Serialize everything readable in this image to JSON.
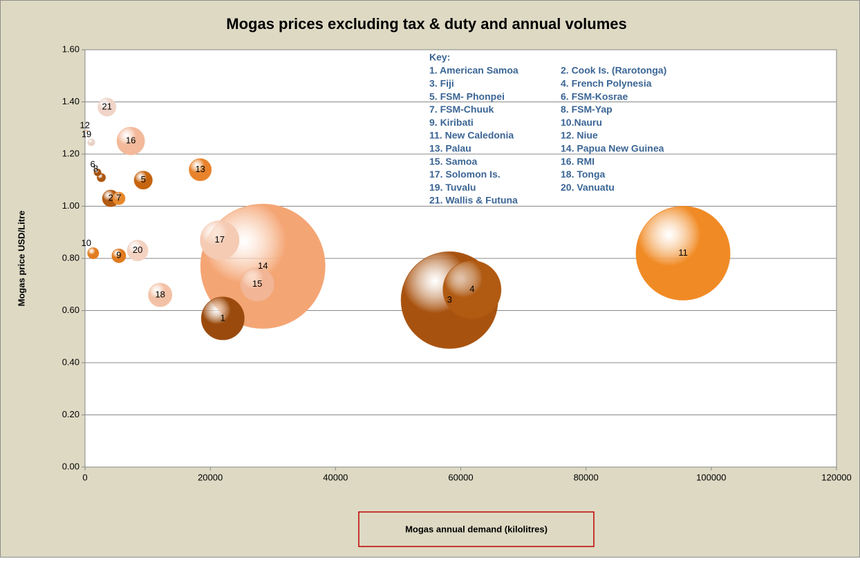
{
  "chart_data": {
    "type": "bubble",
    "title": "Mogas prices excluding tax & duty and annual volumes",
    "x_label": "Mogas annual demand (kilolitres)",
    "y_label": "Mogas price USD/Litre",
    "xlim": [
      0,
      120000
    ],
    "xticks": [
      0,
      20000,
      40000,
      60000,
      80000,
      100000,
      120000
    ],
    "ylim": [
      0,
      1.6
    ],
    "yticks": [
      {
        "value": 0,
        "label": "0.00"
      },
      {
        "value": 0.2,
        "label": "0.20"
      },
      {
        "value": 0.4,
        "label": "0.40"
      },
      {
        "value": 0.6,
        "label": "0.60"
      },
      {
        "value": 0.8,
        "label": "0.80"
      },
      {
        "value": 1.0,
        "label": "1.00"
      },
      {
        "value": 1.2,
        "label": "1.20"
      },
      {
        "value": 1.4,
        "label": "1.40"
      },
      {
        "value": 1.6,
        "label": "1.60"
      }
    ],
    "grid": true,
    "series": [
      {
        "labels": [
          "1",
          "2",
          "3",
          "4",
          "5",
          "6",
          "7",
          "8",
          "9",
          "10",
          "11",
          "12",
          "13",
          "14",
          "15",
          "16",
          "17",
          "18",
          "19",
          "20",
          "21"
        ],
        "x": [
          22000,
          4100,
          58200,
          61800,
          9300,
          2000,
          5400,
          2600,
          5400,
          1300,
          95500,
          300,
          18400,
          28400,
          27500,
          7300,
          21500,
          12000,
          1000,
          8400,
          3500
        ],
        "values": [
          0.57,
          1.03,
          0.64,
          0.68,
          1.1,
          1.13,
          1.03,
          1.11,
          0.81,
          0.82,
          0.82,
          1.29,
          1.14,
          0.77,
          0.7,
          1.25,
          0.87,
          0.66,
          1.245,
          0.83,
          1.38
        ],
        "sizes": [
          960,
          144,
          4900,
          1760,
          170,
          25,
          81,
          36,
          100,
          64,
          4620,
          1,
          256,
          8100,
          576,
          400,
          784,
          290,
          25,
          225,
          170
        ],
        "colors": [
          "#9a4a0c",
          "#b35a12",
          "#a8520f",
          "#b05a12",
          "#c6640f",
          "#a2500e",
          "#e6872a",
          "#ad5610",
          "#e07a1f",
          "#e27c20",
          "#f08a24",
          "#f2b08a",
          "#e8832c",
          "#f4a574",
          "#f2b595",
          "#f3b99a",
          "#f5cbb4",
          "#f3c2a6",
          "#e8d0c4",
          "#f4d2c2",
          "#f0d4c8"
        ]
      }
    ],
    "key": {
      "title": "Key:",
      "items": [
        "1. American  Samoa",
        "2. Cook Is. (Rarotonga)",
        "3. Fiji",
        "4. French Polynesia",
        "5. FSM- Phonpei",
        "6. FSM-Kosrae",
        "7. FSM-Chuuk",
        "8. FSM-Yap",
        "9. Kiribati",
        "10.Nauru",
        "11. New Caledonia",
        "12. Niue",
        "13. Palau",
        "14. Papua New Guinea",
        "15. Samoa",
        "16. RMI",
        "17. Solomon Is.",
        "18. Tonga",
        "19. Tuvalu",
        "20. Vanuatu",
        "21. Wallis & Futuna"
      ]
    }
  }
}
